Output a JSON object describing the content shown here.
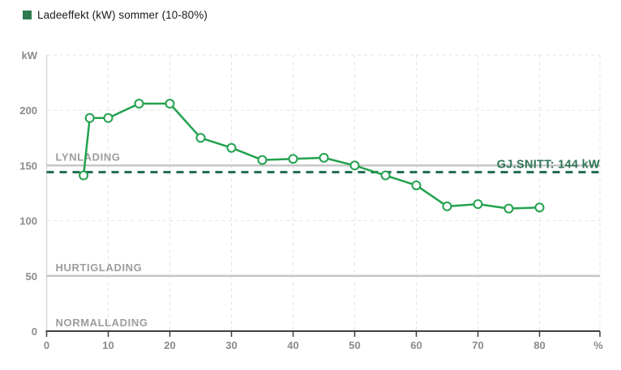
{
  "legend": {
    "marker_color": "#2d7a4f",
    "label": "Ladeeffekt (kW) sommer (10-80%)"
  },
  "chart_data": {
    "type": "line",
    "title": "Ladeeffekt (kW) sommer (10-80%)",
    "xlabel": "%",
    "ylabel": "kW",
    "xlim": [
      0,
      89.8
    ],
    "ylim": [
      0,
      250
    ],
    "x_ticks": [
      0,
      10,
      20,
      30,
      40,
      50,
      60,
      70,
      80
    ],
    "x_end_tick_label": "%",
    "y_ticks": [
      0,
      50,
      100,
      150,
      200
    ],
    "y_axis_top_label": "kW",
    "grid": true,
    "dashed_gridlines_y": [
      100,
      200,
      250
    ],
    "legend_position": "top-left",
    "series": [
      {
        "name": "Ladeeffekt (kW) sommer (10-80%)",
        "color": "#22a14e",
        "marker": "open-circle",
        "marker_fill": "#ffffff",
        "x": [
          6,
          7,
          10,
          15,
          20,
          25,
          30,
          35,
          40,
          45,
          50,
          55,
          60,
          65,
          70,
          75,
          80
        ],
        "values": [
          141,
          193,
          193,
          206,
          206,
          175,
          166,
          155,
          156,
          157,
          150,
          141,
          132,
          113,
          115,
          111,
          112
        ]
      }
    ],
    "annotations": [
      {
        "type": "hline",
        "label": "LYNLADING",
        "value": 150,
        "line_style": "solid",
        "line_color": "#c6c6c6",
        "label_color": "#9c9c9c",
        "label_side": "left"
      },
      {
        "type": "hline",
        "label": "HURTIGLADING",
        "value": 50,
        "line_style": "solid",
        "line_color": "#c6c6c6",
        "label_color": "#9c9c9c",
        "label_side": "left"
      },
      {
        "type": "hline",
        "label": "NORMALLADING",
        "value": 0,
        "line_style": "axis",
        "line_color": "#3f3f3f",
        "label_color": "#9c9c9c",
        "label_side": "left"
      },
      {
        "type": "hline",
        "label": "GJ.SNITT: 144 kW",
        "value": 144,
        "line_style": "dashed",
        "line_color": "#1f6b50",
        "label_color": "#2e7558",
        "label_side": "right"
      }
    ]
  },
  "axis_style": {
    "tick_label_color": "#8b8b8b",
    "axis_color": "#3f3f3f",
    "grid_color": "#e3e3e3",
    "plot_left_border_color": "#d9d9d9"
  }
}
